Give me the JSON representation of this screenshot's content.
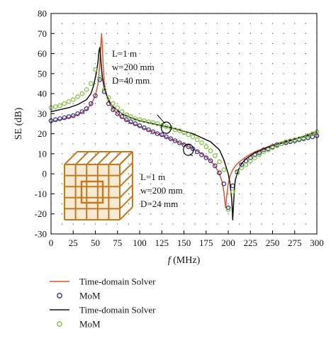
{
  "chart_data": {
    "type": "line",
    "xlabel": "MHz",
    "xlabel_var": "f",
    "ylabel": "SE (dB)",
    "xlim": [
      0,
      300
    ],
    "ylim": [
      -30,
      80
    ],
    "xticks": [
      0,
      25,
      50,
      75,
      100,
      125,
      150,
      175,
      200,
      225,
      250,
      275,
      300
    ],
    "yticks": [
      -30,
      -20,
      -10,
      0,
      10,
      20,
      30,
      40,
      50,
      60,
      70,
      80
    ],
    "grid": "dotted",
    "legend_position": "below",
    "annotations": [
      {
        "lines": [
          "L=1 m",
          "w=200 mm",
          "D=40 mm"
        ],
        "target": [
          130,
          23
        ]
      },
      {
        "lines": [
          "L=1 m",
          "w=200 mm",
          "D=24 mm"
        ],
        "target": [
          155,
          12
        ]
      }
    ],
    "inset": {
      "description": "wire mesh cube",
      "color": "#c47a1c"
    },
    "series": [
      {
        "name": "Time-domain Solver",
        "style": "line",
        "color": "#e0552b",
        "x": [
          0,
          10,
          20,
          30,
          40,
          45,
          50,
          53,
          55,
          56,
          57,
          58,
          59,
          60,
          62,
          65,
          70,
          80,
          90,
          100,
          120,
          140,
          160,
          170,
          180,
          185,
          190,
          193,
          195,
          196,
          197,
          198,
          200,
          202,
          205,
          210,
          220,
          230,
          250,
          270,
          300
        ],
        "y": [
          26,
          27,
          28,
          29.5,
          32,
          34.5,
          39,
          45,
          55,
          63,
          70,
          62,
          52,
          46,
          40,
          36,
          32,
          28,
          25.5,
          23.5,
          20,
          16.5,
          12.5,
          10,
          6.5,
          4,
          0,
          -4,
          -9,
          -13,
          -17,
          -12,
          -5,
          -1,
          2,
          5,
          8.5,
          11,
          14.5,
          17,
          20
        ]
      },
      {
        "name": "MoM",
        "style": "marker-open",
        "color": "#2c2c8c",
        "x": [
          0,
          5,
          10,
          15,
          20,
          25,
          30,
          35,
          40,
          45,
          50,
          55,
          60,
          65,
          70,
          75,
          80,
          85,
          90,
          95,
          100,
          105,
          110,
          115,
          120,
          125,
          130,
          135,
          140,
          145,
          150,
          155,
          160,
          165,
          170,
          175,
          180,
          185,
          190,
          195,
          200,
          205,
          210,
          215,
          220,
          225,
          230,
          235,
          240,
          245,
          250,
          255,
          260,
          265,
          270,
          275,
          280,
          285,
          290,
          295,
          300
        ],
        "y": [
          26.5,
          27,
          27.5,
          28,
          28.5,
          29,
          30,
          31,
          32.5,
          35,
          39,
          47,
          41,
          35,
          32,
          30,
          28.5,
          27,
          26,
          25,
          24,
          23,
          22,
          21,
          20,
          19.5,
          18.5,
          17.5,
          16.5,
          15.5,
          14.5,
          13.5,
          12.5,
          11,
          9.5,
          8,
          6.5,
          4,
          0.5,
          -5,
          -17,
          -6,
          1,
          4.5,
          6.5,
          8,
          9.5,
          10.5,
          12,
          12.5,
          13.5,
          14.5,
          15,
          15.5,
          16,
          16.5,
          17,
          17.5,
          18,
          18.5,
          19
        ]
      },
      {
        "name": "Time-domain Solver",
        "style": "line",
        "color": "#111111",
        "x": [
          0,
          10,
          20,
          30,
          40,
          45,
          48,
          51,
          53,
          54,
          55,
          56,
          57,
          58,
          60,
          63,
          66,
          70,
          80,
          90,
          100,
          110,
          120,
          140,
          160,
          180,
          190,
          195,
          200,
          202,
          204,
          205,
          206,
          207,
          208,
          210,
          212,
          215,
          220,
          230,
          250,
          270,
          300
        ],
        "y": [
          31,
          32,
          33,
          34.5,
          37,
          40,
          44,
          50,
          56,
          61,
          63,
          58,
          52,
          48,
          43,
          39,
          36,
          33.5,
          30,
          28,
          26.5,
          25.5,
          24.5,
          22.5,
          20,
          16,
          12,
          7,
          0,
          -5,
          -13,
          -23,
          -15,
          -7,
          -3,
          0,
          2.5,
          5,
          7.5,
          10.5,
          14,
          16.5,
          21
        ]
      },
      {
        "name": "MoM",
        "style": "marker-open",
        "color": "#7fbf3f",
        "x": [
          0,
          5,
          10,
          15,
          20,
          25,
          30,
          35,
          40,
          45,
          50,
          55,
          60,
          65,
          70,
          75,
          80,
          85,
          90,
          95,
          100,
          105,
          110,
          115,
          120,
          125,
          130,
          135,
          140,
          145,
          150,
          155,
          160,
          165,
          170,
          175,
          180,
          185,
          190,
          195,
          200,
          205,
          210,
          215,
          220,
          225,
          230,
          235,
          240,
          245,
          250,
          255,
          260,
          265,
          270,
          275,
          280,
          285,
          290,
          295,
          300
        ],
        "y": [
          33,
          33.5,
          34,
          35,
          36,
          37,
          38.5,
          40,
          42,
          45,
          52,
          48,
          42,
          38,
          35,
          33,
          31,
          29.5,
          28.5,
          27.5,
          27,
          26.5,
          26,
          25.5,
          25,
          24,
          23.5,
          23,
          22,
          21.5,
          20.5,
          19.5,
          18.5,
          17,
          15.5,
          13.5,
          11.5,
          9,
          6,
          2,
          -18,
          -9,
          0.5,
          3,
          4.5,
          6.5,
          8,
          9.5,
          11,
          12,
          13,
          14,
          15,
          16,
          16.5,
          17,
          17.5,
          18,
          19,
          20,
          21
        ]
      }
    ]
  }
}
